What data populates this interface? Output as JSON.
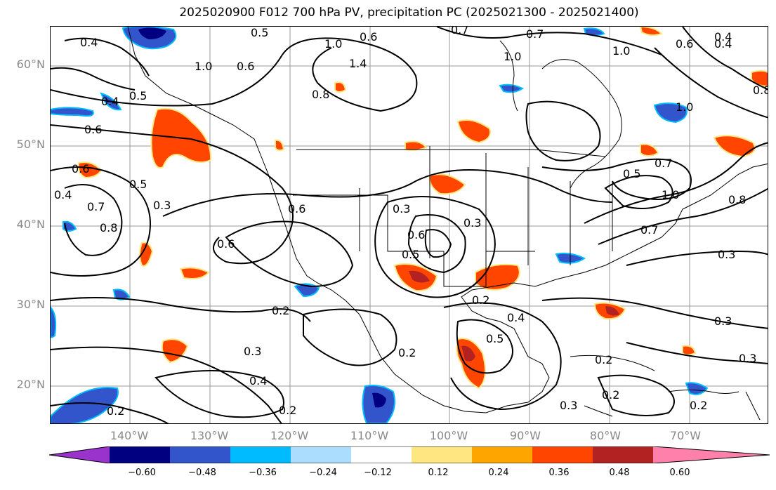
{
  "title": "2025020900 F012 700 hPa PV, precipitation PC (2025021300 - 2025021400)",
  "lat_labels": [
    "60°N",
    "50°N",
    "40°N",
    "30°N",
    "20°N"
  ],
  "lon_labels": [
    "140°W",
    "130°W",
    "120°W",
    "110°W",
    "100°W",
    "90°W",
    "80°W",
    "70°W"
  ],
  "colorbar": {
    "ticks": [
      "−0.60",
      "−0.48",
      "−0.36",
      "−0.24",
      "−0.12",
      "0.12",
      "0.24",
      "0.36",
      "0.48",
      "0.60"
    ],
    "colors": [
      "#9933cc",
      "#000080",
      "#3355cc",
      "#00bbff",
      "#aaddff",
      "#ffffff",
      "#ffe680",
      "#ffa500",
      "#ff4500",
      "#b22222",
      "#ff80aa"
    ]
  },
  "contour_labels": [
    "0.4",
    "0.5",
    "0.6",
    "0.7",
    "0.7",
    "0.4",
    "0.6",
    "1.0",
    "1.0",
    "0.5",
    "0.6",
    "0.4",
    "1.4",
    "0.8",
    "1.0",
    "0.6",
    "1.0",
    "0.8",
    "1.0",
    "0.4",
    "0.5",
    "0.4",
    "0.6",
    "0.6",
    "0.3",
    "0.7",
    "0.8",
    "0.6",
    "0.3",
    "0.6",
    "0.5",
    "0.3",
    "0.7",
    "1.0",
    "0.5",
    "0.8",
    "0.7",
    "0.3",
    "0.2",
    "0.3",
    "0.4",
    "0.2",
    "0.4",
    "0.5",
    "0.2",
    "0.3",
    "0.3",
    "0.2",
    "0.2",
    "0.2",
    "0.3",
    "0.2",
    "0.2"
  ]
}
